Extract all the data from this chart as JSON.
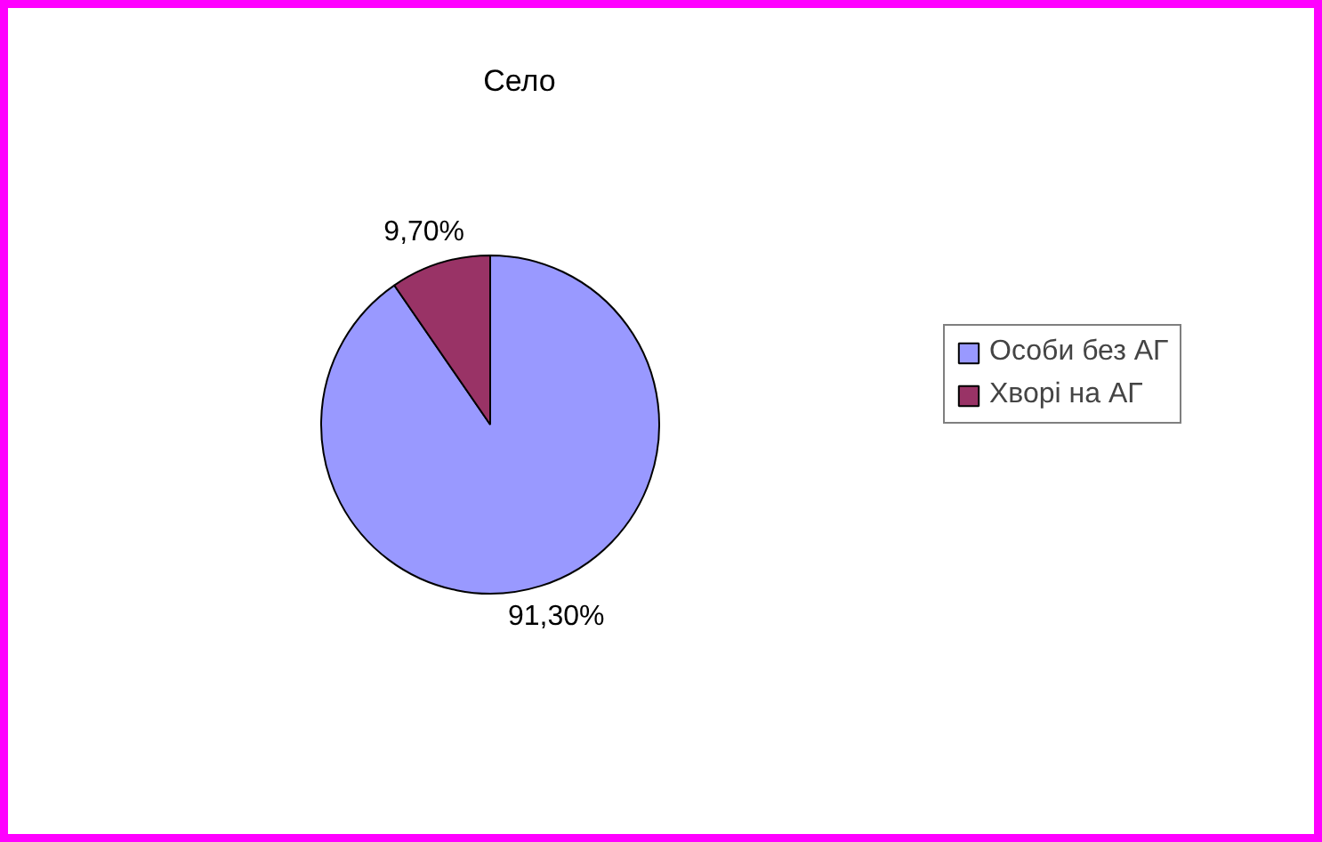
{
  "chart_data": {
    "type": "pie",
    "title": "Село",
    "categories": [
      "Особи без АГ",
      "Хворі на АГ"
    ],
    "values": [
      91.3,
      9.7
    ],
    "colors": [
      "#9999ff",
      "#993366"
    ],
    "value_labels": [
      "91,30%",
      "9,70%"
    ],
    "legend": "right"
  }
}
